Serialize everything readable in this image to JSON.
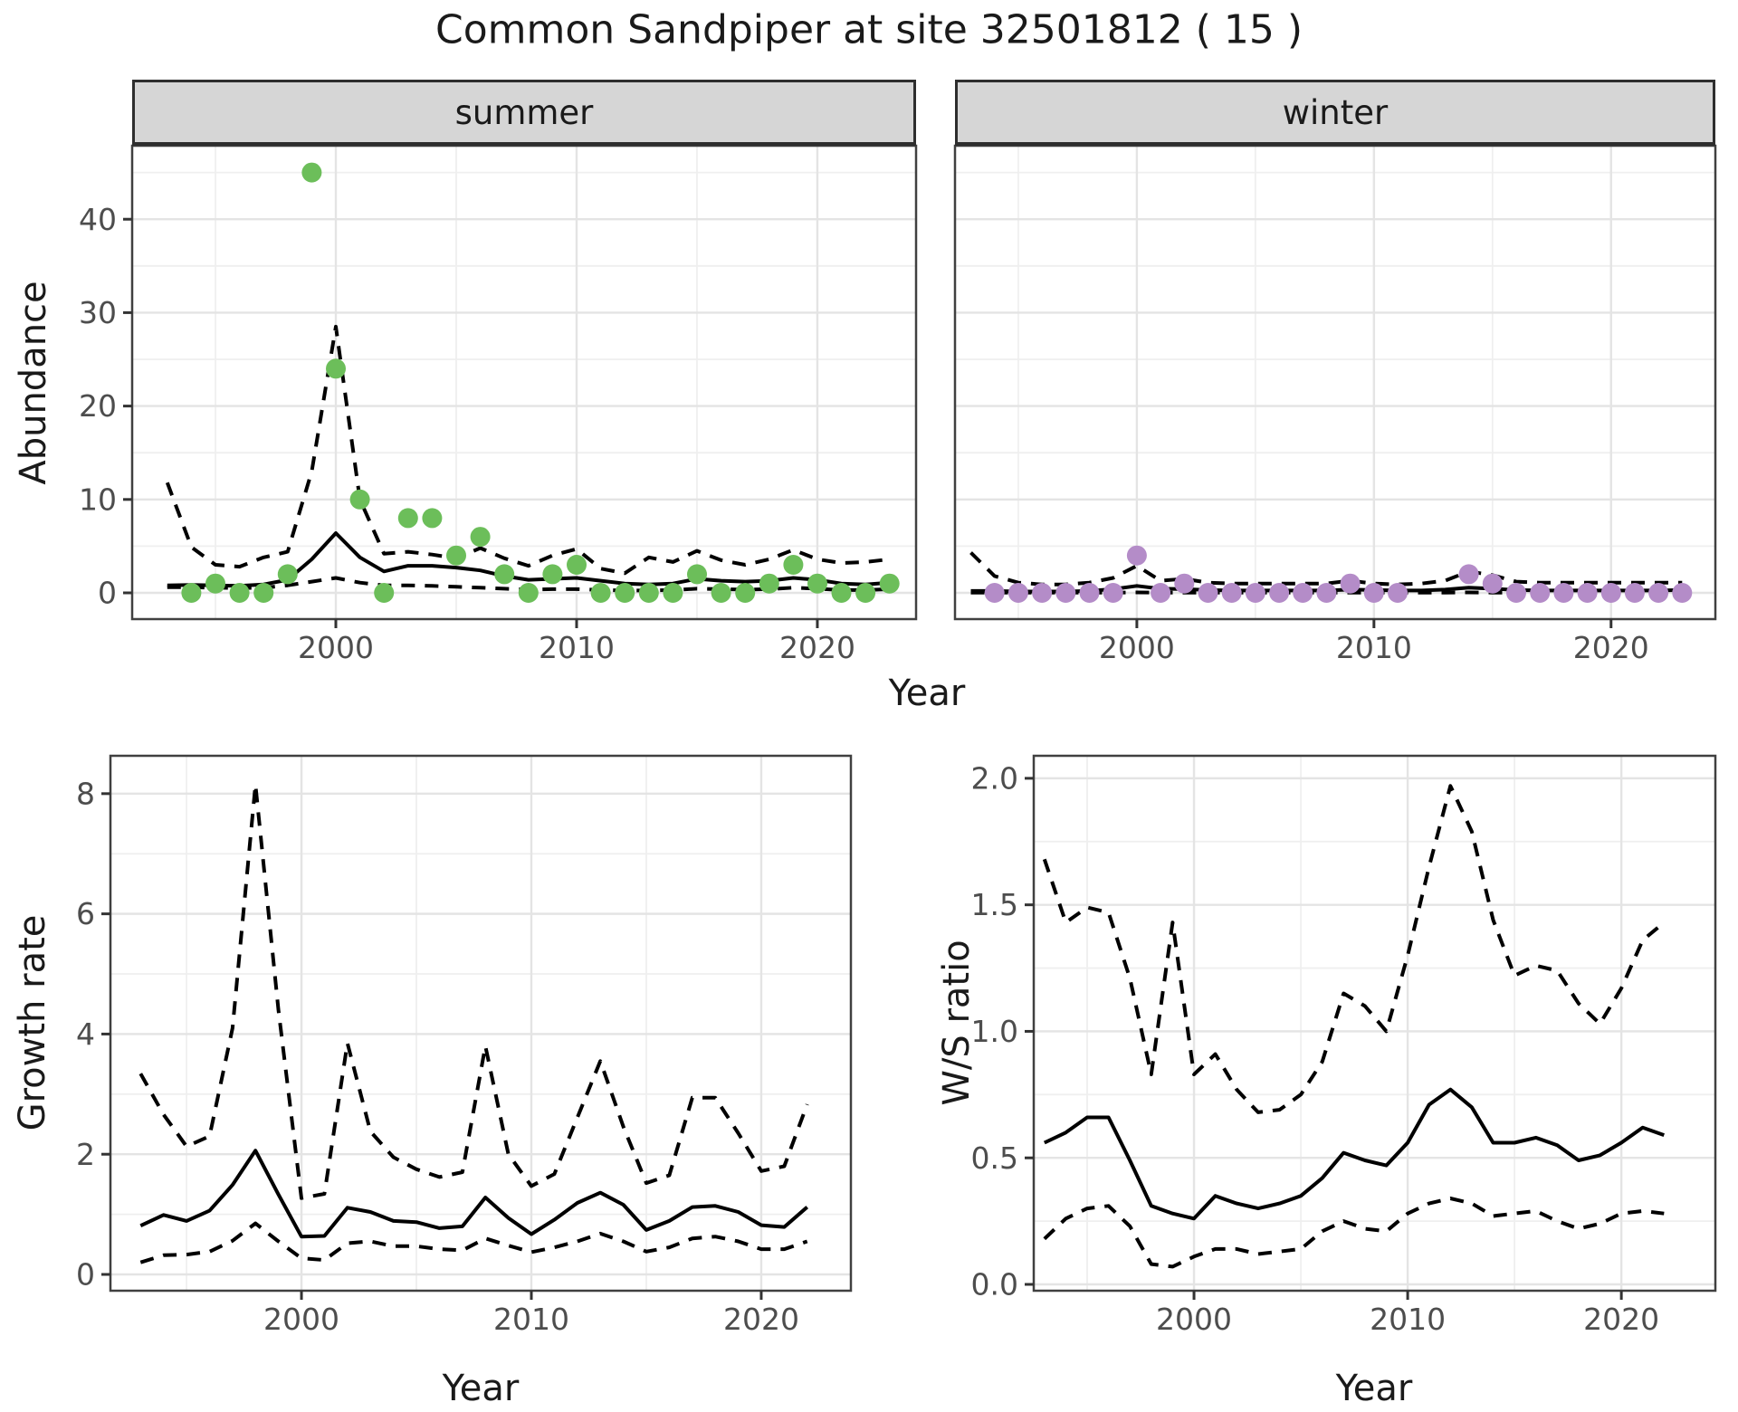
{
  "title": "Common Sandpiper at site 32501812 ( 15 )",
  "colors": {
    "summer_point": "#6CBE5A",
    "winter_point": "#B48CC8",
    "fit_line": "#000000",
    "ci_line": "#000000",
    "grid_major": "#E4E4E4",
    "grid_minor": "#EFEFEF",
    "panel_border": "#404040",
    "tick_mark": "#333333",
    "tick_label": "#4D4D4D",
    "strip_bg": "#D6D6D6",
    "panel_bg": "#FFFFFF"
  },
  "chart_data": [
    {
      "id": "abundance-summer",
      "type": "scatter",
      "facet_label": "summer",
      "xlabel": "Year",
      "ylabel": "Abundance",
      "xlim": [
        1991.54,
        2024.1
      ],
      "ylim": [
        -2.81,
        47.87
      ],
      "x_tick_values": [
        2000,
        2010,
        2020
      ],
      "x_tick_labels": [
        "2000",
        "2010",
        "2020"
      ],
      "x_minor": [
        1995,
        2005,
        2015
      ],
      "y_tick_values": [
        0,
        10,
        20,
        30,
        40
      ],
      "y_tick_labels": [
        "0",
        "10",
        "20",
        "30",
        "40"
      ],
      "y_minor": [
        5,
        15,
        25,
        35,
        45
      ],
      "show_y_tick_labels": true,
      "point_color": "#6CBE5A",
      "points": {
        "years": [
          1994,
          1995,
          1996,
          1997,
          1998,
          1999,
          2000,
          2001,
          2002,
          2003,
          2004,
          2005,
          2006,
          2007,
          2008,
          2009,
          2010,
          2011,
          2012,
          2013,
          2014,
          2015,
          2016,
          2017,
          2018,
          2019,
          2020,
          2021,
          2022,
          2023
        ],
        "values": [
          0,
          1,
          0,
          0,
          2,
          45,
          24,
          10,
          0,
          8,
          8,
          4,
          6,
          2,
          0,
          2,
          3,
          0,
          0,
          0,
          0,
          2,
          0,
          0,
          1,
          3,
          1,
          0,
          0,
          1
        ]
      },
      "line_years": [
        1993,
        1994,
        1995,
        1996,
        1997,
        1998,
        1999,
        2000,
        2001,
        2002,
        2003,
        2004,
        2005,
        2006,
        2007,
        2008,
        2009,
        2010,
        2011,
        2012,
        2013,
        2014,
        2015,
        2016,
        2017,
        2018,
        2019,
        2020,
        2021,
        2022,
        2023
      ],
      "fit": [
        0.8,
        0.85,
        0.8,
        0.75,
        0.9,
        1.4,
        3.6,
        6.4,
        3.8,
        2.3,
        2.9,
        2.9,
        2.7,
        2.4,
        1.8,
        1.4,
        1.5,
        1.6,
        1.3,
        1.0,
        0.9,
        1.0,
        1.5,
        1.3,
        1.2,
        1.3,
        1.6,
        1.4,
        1.0,
        0.9,
        1.1
      ],
      "ci_upper": [
        11.8,
        4.9,
        3.0,
        2.8,
        3.8,
        4.4,
        13.0,
        28.5,
        10.0,
        4.2,
        4.4,
        4.1,
        3.7,
        4.8,
        3.7,
        2.9,
        4.0,
        4.7,
        2.6,
        2.1,
        3.8,
        3.3,
        4.5,
        3.5,
        3.0,
        3.6,
        4.6,
        3.6,
        3.2,
        3.3,
        3.6
      ],
      "ci_lower": [
        0.6,
        0.6,
        0.55,
        0.5,
        0.55,
        0.8,
        1.2,
        1.6,
        1.1,
        0.8,
        0.8,
        0.75,
        0.65,
        0.55,
        0.45,
        0.35,
        0.4,
        0.4,
        0.3,
        0.25,
        0.25,
        0.3,
        0.45,
        0.4,
        0.35,
        0.4,
        0.55,
        0.45,
        0.3,
        0.3,
        0.4
      ]
    },
    {
      "id": "abundance-winter",
      "type": "scatter",
      "facet_label": "winter",
      "xlabel": "Year",
      "ylabel": "Abundance",
      "xlim": [
        1992.33,
        2024.4
      ],
      "ylim": [
        -2.81,
        47.87
      ],
      "x_tick_values": [
        2000,
        2010,
        2020
      ],
      "x_tick_labels": [
        "2000",
        "2010",
        "2020"
      ],
      "x_minor": [
        1995,
        2005,
        2015
      ],
      "y_tick_values": [
        0,
        10,
        20,
        30,
        40
      ],
      "y_tick_labels": [
        "0",
        "10",
        "20",
        "30",
        "40"
      ],
      "y_minor": [
        5,
        15,
        25,
        35,
        45
      ],
      "show_y_tick_labels": false,
      "point_color": "#B48CC8",
      "points": {
        "years": [
          1994,
          1995,
          1996,
          1997,
          1998,
          1999,
          2000,
          2001,
          2002,
          2003,
          2004,
          2005,
          2006,
          2007,
          2008,
          2009,
          2010,
          2011,
          2014,
          2015,
          2016,
          2017,
          2018,
          2019,
          2020,
          2021,
          2022,
          2023
        ],
        "values": [
          0,
          0,
          0,
          0,
          0,
          0,
          4,
          0,
          1,
          0,
          0,
          0,
          0,
          0,
          0,
          1,
          0,
          0,
          2,
          1,
          0,
          0,
          0,
          0,
          0,
          0,
          0,
          0
        ]
      },
      "line_years": [
        1993,
        1994,
        1995,
        1996,
        1997,
        1998,
        1999,
        2000,
        2001,
        2002,
        2003,
        2004,
        2005,
        2006,
        2007,
        2008,
        2009,
        2010,
        2011,
        2012,
        2013,
        2014,
        2015,
        2016,
        2017,
        2018,
        2019,
        2020,
        2021,
        2022,
        2023
      ],
      "fit": [
        0.2,
        0.2,
        0.15,
        0.15,
        0.15,
        0.2,
        0.4,
        0.75,
        0.45,
        0.4,
        0.3,
        0.25,
        0.25,
        0.25,
        0.25,
        0.25,
        0.35,
        0.3,
        0.25,
        0.25,
        0.35,
        0.55,
        0.45,
        0.3,
        0.25,
        0.25,
        0.25,
        0.25,
        0.25,
        0.25,
        0.3
      ],
      "ci_upper": [
        4.3,
        1.8,
        1.1,
        0.9,
        0.9,
        1.1,
        1.6,
        2.9,
        1.3,
        1.5,
        1.1,
        1.0,
        1.0,
        1.0,
        1.0,
        1.0,
        1.3,
        1.0,
        0.9,
        1.0,
        1.3,
        2.3,
        1.9,
        1.2,
        1.1,
        1.1,
        1.1,
        1.1,
        1.1,
        1.1,
        1.1
      ],
      "ci_lower": [
        0.03,
        0.03,
        0.03,
        0.03,
        0.03,
        0.03,
        0.03,
        0.05,
        0.03,
        0.03,
        0.03,
        0.03,
        0.03,
        0.03,
        0.03,
        0.03,
        0.03,
        0.03,
        0.03,
        0.03,
        0.03,
        0.05,
        0.03,
        0.03,
        0.03,
        0.03,
        0.03,
        0.03,
        0.03,
        0.03,
        0.03
      ]
    },
    {
      "id": "growth-rate",
      "type": "line",
      "facet_label": "",
      "xlabel": "Year",
      "ylabel": "Growth rate",
      "xlim": [
        1991.69,
        2023.9
      ],
      "ylim": [
        -0.271,
        8.63
      ],
      "x_tick_values": [
        2000,
        2010,
        2020
      ],
      "x_tick_labels": [
        "2000",
        "2010",
        "2020"
      ],
      "x_minor": [
        1995,
        2005,
        2015
      ],
      "y_tick_values": [
        0,
        2,
        4,
        6,
        8
      ],
      "y_tick_labels": [
        "0",
        "2",
        "4",
        "6",
        "8"
      ],
      "y_minor": [
        1,
        3,
        5,
        7
      ],
      "show_y_tick_labels": true,
      "line_years": [
        1993,
        1994,
        1995,
        1996,
        1997,
        1998,
        1999,
        2000,
        2001,
        2002,
        2003,
        2004,
        2005,
        2006,
        2007,
        2008,
        2009,
        2010,
        2011,
        2012,
        2013,
        2014,
        2015,
        2016,
        2017,
        2018,
        2019,
        2020,
        2021,
        2022
      ],
      "fit": [
        0.81,
        0.99,
        0.89,
        1.06,
        1.49,
        2.06,
        1.33,
        0.63,
        0.64,
        1.11,
        1.04,
        0.89,
        0.87,
        0.77,
        0.8,
        1.28,
        0.94,
        0.67,
        0.91,
        1.19,
        1.36,
        1.16,
        0.74,
        0.89,
        1.12,
        1.14,
        1.04,
        0.82,
        0.79,
        1.12
      ],
      "ci_upper": [
        3.34,
        2.66,
        2.13,
        2.3,
        4.1,
        8.15,
        4.4,
        1.27,
        1.34,
        3.85,
        2.38,
        1.95,
        1.75,
        1.62,
        1.7,
        3.8,
        2.0,
        1.47,
        1.67,
        2.61,
        3.55,
        2.46,
        1.52,
        1.65,
        2.94,
        2.94,
        2.35,
        1.72,
        1.8,
        2.83
      ],
      "ci_lower": [
        0.2,
        0.32,
        0.33,
        0.38,
        0.56,
        0.85,
        0.55,
        0.27,
        0.24,
        0.52,
        0.55,
        0.47,
        0.47,
        0.42,
        0.4,
        0.6,
        0.48,
        0.37,
        0.45,
        0.55,
        0.68,
        0.55,
        0.38,
        0.45,
        0.6,
        0.63,
        0.55,
        0.42,
        0.42,
        0.55
      ]
    },
    {
      "id": "ws-ratio",
      "type": "line",
      "facet_label": "",
      "xlabel": "Year",
      "ylabel": "W/S ratio",
      "xlim": [
        1992.5,
        2024.4
      ],
      "ylim": [
        -0.025,
        2.089
      ],
      "x_tick_values": [
        2000,
        2010,
        2020
      ],
      "x_tick_labels": [
        "2000",
        "2010",
        "2020"
      ],
      "x_minor": [
        1995,
        2005,
        2015
      ],
      "y_tick_values": [
        0.0,
        0.5,
        1.0,
        1.5,
        2.0
      ],
      "y_tick_labels": [
        "0.0",
        "0.5",
        "1.0",
        "1.5",
        "2.0"
      ],
      "y_minor": [
        0.25,
        0.75,
        1.25,
        1.75
      ],
      "show_y_tick_labels": true,
      "line_years": [
        1993,
        1994,
        1995,
        1996,
        1997,
        1998,
        1999,
        2000,
        2001,
        2002,
        2003,
        2004,
        2005,
        2006,
        2007,
        2008,
        2009,
        2010,
        2011,
        2012,
        2013,
        2014,
        2015,
        2016,
        2017,
        2018,
        2019,
        2020,
        2021,
        2022
      ],
      "fit": [
        0.56,
        0.6,
        0.66,
        0.66,
        0.49,
        0.31,
        0.28,
        0.26,
        0.35,
        0.32,
        0.3,
        0.32,
        0.35,
        0.42,
        0.52,
        0.49,
        0.47,
        0.56,
        0.71,
        0.77,
        0.7,
        0.56,
        0.56,
        0.58,
        0.55,
        0.49,
        0.51,
        0.56,
        0.62,
        0.59
      ],
      "ci_upper": [
        1.68,
        1.43,
        1.49,
        1.47,
        1.21,
        0.83,
        1.43,
        0.83,
        0.91,
        0.77,
        0.68,
        0.69,
        0.75,
        0.88,
        1.15,
        1.1,
        1.0,
        1.3,
        1.65,
        1.97,
        1.79,
        1.44,
        1.22,
        1.26,
        1.24,
        1.11,
        1.03,
        1.17,
        1.36,
        1.43
      ],
      "ci_lower": [
        0.18,
        0.26,
        0.3,
        0.31,
        0.23,
        0.08,
        0.07,
        0.11,
        0.14,
        0.14,
        0.12,
        0.13,
        0.14,
        0.21,
        0.25,
        0.22,
        0.21,
        0.28,
        0.32,
        0.34,
        0.32,
        0.27,
        0.28,
        0.29,
        0.25,
        0.22,
        0.24,
        0.28,
        0.29,
        0.28
      ]
    }
  ]
}
